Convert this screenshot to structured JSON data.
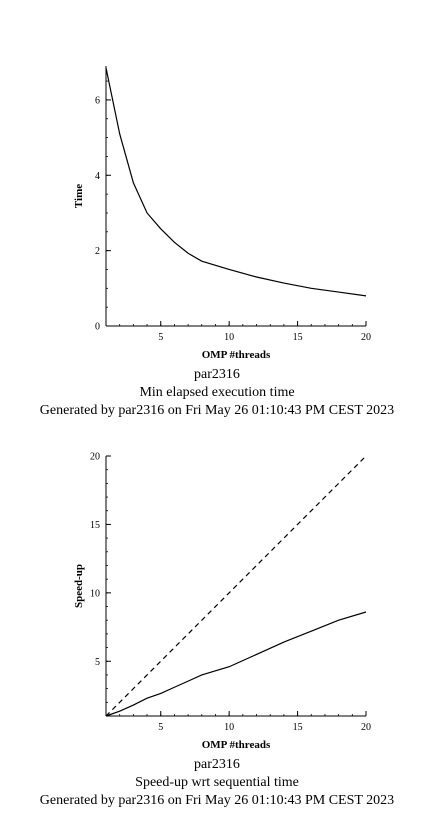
{
  "chart_data": [
    {
      "type": "line",
      "xlabel": "OMP #threads",
      "ylabel": "Time",
      "xlim": [
        1,
        20
      ],
      "ylim": [
        0,
        6.9
      ],
      "xticks": [
        5,
        10,
        15,
        20
      ],
      "yticks": [
        0,
        2,
        4,
        6
      ],
      "grid": false,
      "captions": [
        "par2316",
        "Min elapsed execution time",
        "Generated by par2316 on Fri May 26 01:10:43 PM CEST 2023"
      ],
      "series": [
        {
          "style": "solid",
          "x": [
            1,
            2,
            3,
            4,
            5,
            6,
            7,
            8,
            10,
            12,
            14,
            16,
            18,
            20
          ],
          "y": [
            6.85,
            5.1,
            3.8,
            3.0,
            2.58,
            2.22,
            1.93,
            1.72,
            1.5,
            1.3,
            1.14,
            1.0,
            0.9,
            0.8
          ]
        }
      ]
    },
    {
      "type": "line",
      "xlabel": "OMP #threads",
      "ylabel": "Speed-up",
      "xlim": [
        1,
        20
      ],
      "ylim": [
        1,
        20
      ],
      "xticks": [
        5,
        10,
        15,
        20
      ],
      "yticks": [
        5,
        10,
        15,
        20
      ],
      "grid": false,
      "captions": [
        "par2316",
        "Speed-up wrt sequential time",
        "Generated by par2316 on Fri May 26 01:10:43 PM CEST 2023"
      ],
      "series": [
        {
          "style": "dashed",
          "x": [
            1,
            20
          ],
          "y": [
            1,
            20
          ]
        },
        {
          "style": "solid",
          "x": [
            1,
            2,
            3,
            4,
            5,
            6,
            7,
            8,
            10,
            12,
            14,
            16,
            18,
            20
          ],
          "y": [
            1,
            1.35,
            1.8,
            2.3,
            2.65,
            3.1,
            3.55,
            4.0,
            4.6,
            5.5,
            6.4,
            7.2,
            8.0,
            8.6
          ]
        }
      ]
    }
  ]
}
